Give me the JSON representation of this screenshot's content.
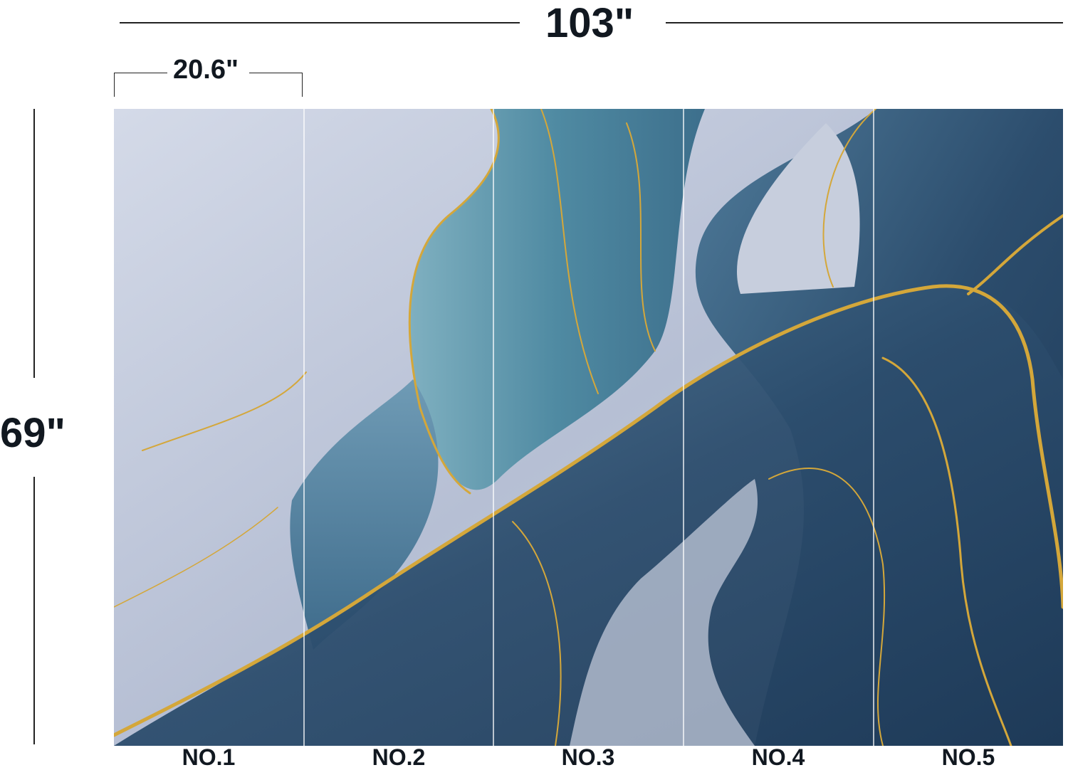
{
  "dimensions": {
    "total_width": "103\"",
    "panel_width": "20.6\"",
    "height": "69\""
  },
  "panels": [
    {
      "label": "NO.1"
    },
    {
      "label": "NO.2"
    },
    {
      "label": "NO.3"
    },
    {
      "label": "NO.4"
    },
    {
      "label": "NO.5"
    }
  ],
  "colors": {
    "light_silver_blue": "#c3cbdc",
    "teal_blue": "#5f93a8",
    "navy_blue": "#2c4d6d",
    "gold": "#d4a73a"
  }
}
